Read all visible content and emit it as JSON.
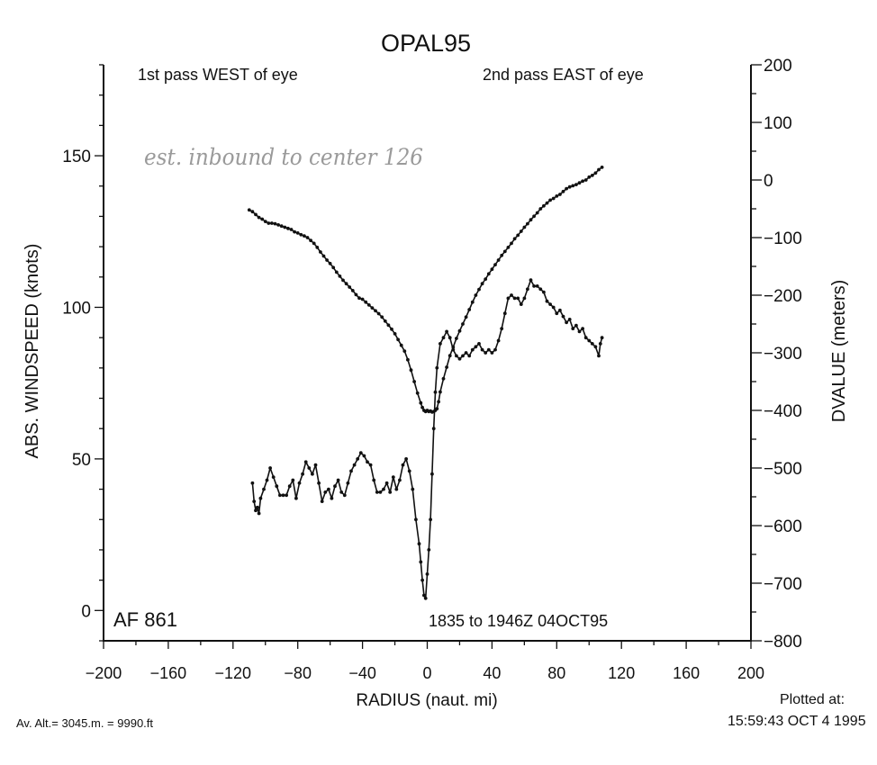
{
  "chart_data": {
    "type": "line",
    "title": "OPAL95",
    "xlabel": "RADIUS (naut. mi)",
    "ylabel": "ABS. WINDSPEED (knots)",
    "y2label": "DVALUE (meters)",
    "xlim": [
      -200,
      200
    ],
    "ylim": [
      -10,
      180
    ],
    "y2lim": [
      -800,
      200
    ],
    "x_ticks": [
      -200,
      -160,
      -120,
      -80,
      -40,
      0,
      40,
      80,
      120,
      160,
      200
    ],
    "x_tick_labels": [
      "−200",
      "−160",
      "−120",
      "−80",
      "−40",
      "0",
      "40",
      "80",
      "120",
      "160",
      "200"
    ],
    "y_ticks": [
      0,
      50,
      100,
      150
    ],
    "y_tick_labels": [
      "0",
      "50",
      "100",
      "150"
    ],
    "y2_ticks": [
      -800,
      -700,
      -600,
      -500,
      -400,
      -300,
      -200,
      -100,
      0,
      100,
      200
    ],
    "y2_tick_labels": [
      "−800",
      "−700",
      "−600",
      "−500",
      "−400",
      "−300",
      "−200",
      "−100",
      "0",
      "100",
      "200"
    ],
    "grid": false,
    "annotations": {
      "west_pass": "1st pass WEST of eye",
      "east_pass": "2nd pass EAST of eye",
      "flight": "AF 861",
      "time_range": "1835 to 1946Z 04OCT95",
      "handwritten": "est. inbound to center 126",
      "altitude": "Av. Alt.= 3045.m. =  9990.ft",
      "plotted_label": "Plotted at:",
      "plotted_time": "15:59:43 OCT  4 1995"
    },
    "series": [
      {
        "axis": "left",
        "x": [
          -108,
          -107,
          -106,
          -105,
          -104,
          -103,
          -101,
          -99,
          -97,
          -95,
          -93,
          -91,
          -89,
          -87,
          -85,
          -83,
          -81,
          -79,
          -77,
          -75,
          -73,
          -71,
          -69,
          -67,
          -65,
          -63,
          -61,
          -59,
          -57,
          -55,
          -53,
          -51,
          -49,
          -47,
          -45,
          -43,
          -41,
          -39,
          -37,
          -35,
          -33,
          -31,
          -29,
          -27,
          -25,
          -23,
          -21,
          -19,
          -17,
          -15,
          -13,
          -11,
          -9,
          -7,
          -5,
          -4,
          -3,
          -2,
          -1,
          0,
          1,
          2,
          3,
          4,
          5,
          6,
          8,
          10,
          12,
          14,
          16,
          18,
          20,
          22,
          24,
          26,
          28,
          30,
          32,
          34,
          36,
          38,
          40,
          42,
          44,
          46,
          48,
          50,
          52,
          54,
          56,
          58,
          60,
          62,
          64,
          66,
          68,
          70,
          72,
          74,
          76,
          78,
          80,
          82,
          84,
          86,
          88,
          90,
          92,
          94,
          96,
          98,
          100,
          102,
          104,
          106,
          107,
          108
        ],
        "values": [
          42,
          36,
          33,
          34,
          32,
          37,
          40,
          43,
          47,
          44,
          41,
          38,
          38,
          38,
          41,
          43,
          37,
          42,
          45,
          49,
          47,
          45,
          48,
          42,
          36,
          39,
          40,
          37,
          41,
          43,
          39,
          38,
          42,
          46,
          48,
          50,
          52,
          51,
          49,
          48,
          43,
          39,
          39,
          40,
          42,
          39,
          44,
          40,
          43,
          48,
          50,
          46,
          40,
          30,
          22,
          16,
          10,
          5,
          4,
          12,
          20,
          30,
          45,
          60,
          72,
          80,
          88,
          90,
          92,
          90,
          86,
          84,
          83,
          84,
          85,
          84,
          86,
          87,
          88,
          86,
          85,
          86,
          85,
          86,
          89,
          93,
          98,
          103,
          104,
          103,
          103,
          101,
          103,
          106,
          109,
          107,
          107,
          106,
          105,
          102,
          101,
          100,
          98,
          99,
          97,
          95,
          96,
          93,
          94,
          92,
          93,
          90,
          89,
          88,
          87,
          84,
          88,
          90
        ]
      },
      {
        "axis": "right",
        "x": [
          -110,
          -108,
          -106,
          -104,
          -102,
          -100,
          -98,
          -96,
          -94,
          -92,
          -90,
          -88,
          -86,
          -84,
          -82,
          -80,
          -78,
          -76,
          -74,
          -72,
          -70,
          -68,
          -66,
          -64,
          -62,
          -60,
          -58,
          -56,
          -54,
          -52,
          -50,
          -48,
          -46,
          -44,
          -42,
          -40,
          -38,
          -36,
          -34,
          -32,
          -30,
          -28,
          -26,
          -24,
          -22,
          -20,
          -18,
          -16,
          -14,
          -12,
          -10,
          -8,
          -6,
          -4,
          -3,
          -2,
          -1,
          0,
          1,
          2,
          3,
          4,
          5,
          6,
          7,
          8,
          10,
          12,
          14,
          16,
          18,
          20,
          22,
          24,
          26,
          28,
          30,
          32,
          34,
          36,
          38,
          40,
          42,
          44,
          46,
          48,
          50,
          52,
          54,
          56,
          58,
          60,
          62,
          64,
          66,
          68,
          70,
          72,
          74,
          76,
          78,
          80,
          82,
          84,
          86,
          88,
          90,
          92,
          94,
          96,
          98,
          100,
          102,
          104,
          106,
          108
        ],
        "values": [
          -52,
          -55,
          -60,
          -65,
          -68,
          -72,
          -75,
          -75,
          -76,
          -78,
          -80,
          -82,
          -84,
          -86,
          -90,
          -92,
          -95,
          -97,
          -100,
          -105,
          -110,
          -117,
          -125,
          -132,
          -139,
          -145,
          -152,
          -160,
          -167,
          -174,
          -180,
          -186,
          -192,
          -199,
          -205,
          -207,
          -212,
          -217,
          -222,
          -227,
          -232,
          -238,
          -245,
          -252,
          -259,
          -267,
          -277,
          -287,
          -297,
          -312,
          -330,
          -350,
          -370,
          -387,
          -395,
          -400,
          -402,
          -400,
          -402,
          -401,
          -403,
          -402,
          -400,
          -397,
          -385,
          -368,
          -345,
          -325,
          -305,
          -290,
          -275,
          -262,
          -250,
          -238,
          -225,
          -212,
          -200,
          -190,
          -180,
          -172,
          -163,
          -155,
          -147,
          -139,
          -131,
          -124,
          -117,
          -110,
          -102,
          -96,
          -89,
          -82,
          -76,
          -69,
          -63,
          -57,
          -50,
          -45,
          -40,
          -35,
          -32,
          -28,
          -25,
          -20,
          -15,
          -12,
          -10,
          -8,
          -5,
          -2,
          0,
          5,
          8,
          12,
          18,
          22
        ]
      }
    ]
  }
}
